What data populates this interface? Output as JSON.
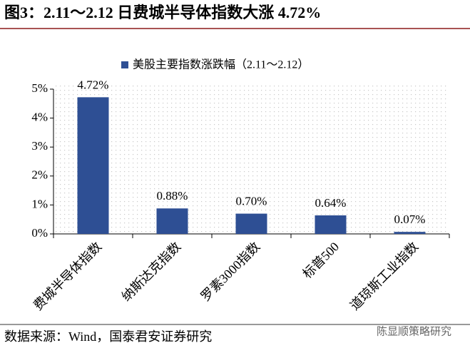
{
  "chart_data": {
    "type": "bar",
    "title": "图3：2.11～2.12 日费城半导体指数大涨 4.72%",
    "categories": [
      "费城半导体指数",
      "纳斯达克指数",
      "罗素3000指数",
      "标普500",
      "道琼斯工业指数"
    ],
    "series": [
      {
        "name": "美股主要指数涨跌幅（2.11～2.12）",
        "color": "#2e4f94",
        "values": [
          4.72,
          0.88,
          0.7,
          0.64,
          0.07
        ],
        "value_labels": [
          "4.72%",
          "0.88%",
          "0.70%",
          "0.64%",
          "0.07%"
        ]
      }
    ],
    "ylim": [
      0,
      5
    ],
    "yticks": [
      {
        "value": 0,
        "label": "0%"
      },
      {
        "value": 1,
        "label": "1%"
      },
      {
        "value": 2,
        "label": "2%"
      },
      {
        "value": 3,
        "label": "3%"
      },
      {
        "value": 4,
        "label": "4%"
      },
      {
        "value": 5,
        "label": "5%"
      }
    ],
    "grid": false
  },
  "source": "数据来源：Wind，国泰君安证券研究",
  "watermark": "陈显顺策略研究"
}
